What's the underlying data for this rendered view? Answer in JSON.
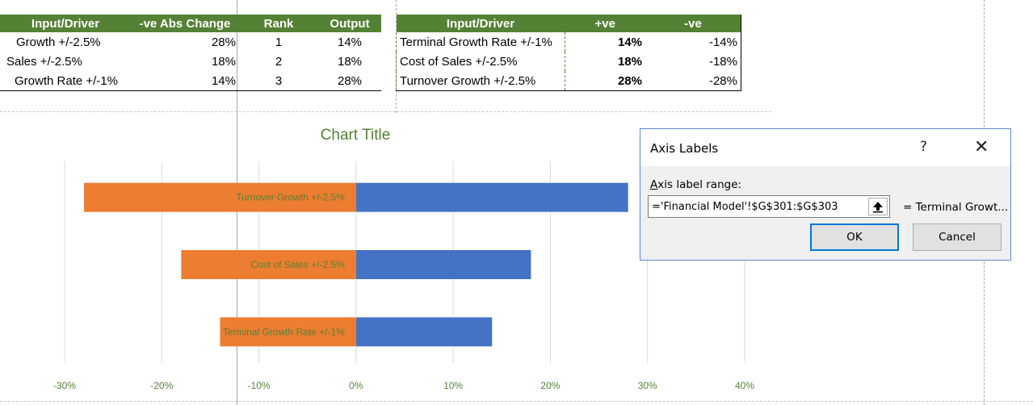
{
  "left_table": {
    "headers": [
      "Input/Driver",
      "-ve Abs Change",
      "Rank",
      "Output"
    ],
    "rows": [
      {
        "driver": "Growth +/-2.5%",
        "change": "28%",
        "rank": "1",
        "output": "14%"
      },
      {
        "driver": "Sales +/-2.5%",
        "change": "18%",
        "rank": "2",
        "output": "18%"
      },
      {
        "driver": "Growth Rate +/-1%",
        "change": "14%",
        "rank": "3",
        "output": "28%"
      }
    ]
  },
  "right_table": {
    "headers": [
      "Input/Driver",
      "+ve",
      "-ve"
    ],
    "rows": [
      {
        "driver": "Terminal Growth Rate +/-1%",
        "pos": "14%",
        "neg": "-14%"
      },
      {
        "driver": "Cost of Sales +/-2.5%",
        "pos": "18%",
        "neg": "-18%"
      },
      {
        "driver": "Turnover Growth +/-2.5%",
        "pos": "28%",
        "neg": "-28%"
      }
    ]
  },
  "chart_data": {
    "type": "bar",
    "orientation": "horizontal",
    "title": "Chart Title",
    "categories": [
      "Turnover Growth +/-2.5%",
      "Cost of Sales +/-2.5%",
      "Terminal Growth Rate +/-1%"
    ],
    "series": [
      {
        "values": [
          28,
          18,
          14
        ],
        "color": "#4472c4"
      },
      {
        "values": [
          -28,
          -18,
          -14
        ],
        "color": "#ed7d31"
      }
    ],
    "x_ticks": [
      -30,
      -20,
      -10,
      0,
      10,
      20,
      30,
      40
    ],
    "tick_labels": [
      "-30%",
      "-20%",
      "-10%",
      "0%",
      "10%",
      "20%",
      "30%",
      "40%"
    ],
    "xlim": [
      -30,
      40
    ],
    "grid": true,
    "label_color": "#548235"
  },
  "dialog": {
    "title": "Axis Labels",
    "help": "?",
    "close": "✕",
    "label_underlined": "A",
    "label_rest": "xis label range:",
    "range_value": "='Financial Model'!$G$301:$G$303",
    "preview": "= Terminal Growt...",
    "ok_label": "OK",
    "cancel_label": "Cancel"
  }
}
